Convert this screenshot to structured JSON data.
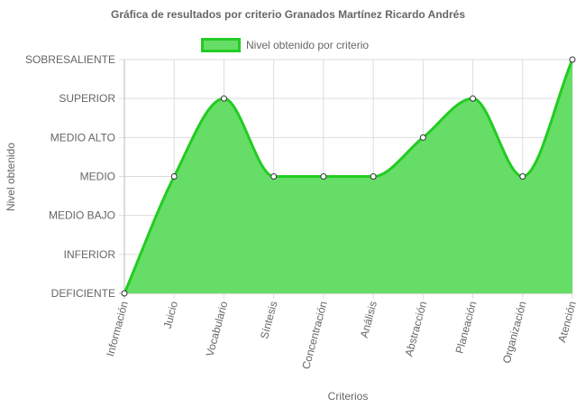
{
  "chart_data": {
    "type": "area",
    "title": "Gráfica de resultados por criterio Granados Martínez Ricardo Andrés",
    "xlabel": "Criterios",
    "ylabel": "Nivel obtenido",
    "legend": "top",
    "grid": true,
    "y_levels": [
      "DEFICIENTE",
      "INFERIOR",
      "MEDIO BAJO",
      "MEDIO",
      "MEDIO ALTO",
      "SUPERIOR",
      "SOBRESALIENTE"
    ],
    "categories": [
      "Información",
      "Juicio",
      "Vocabulario",
      "Síntesis",
      "Concentración",
      "Análisis",
      "Abstracción",
      "Planeación",
      "Organización",
      "Atención"
    ],
    "series": [
      {
        "name": "Nivel obtenido por criterio",
        "values": [
          0,
          3,
          5,
          3,
          3,
          3,
          4,
          5,
          3,
          6
        ],
        "fill": "#66dd66",
        "stroke": "#22cc22"
      }
    ]
  }
}
